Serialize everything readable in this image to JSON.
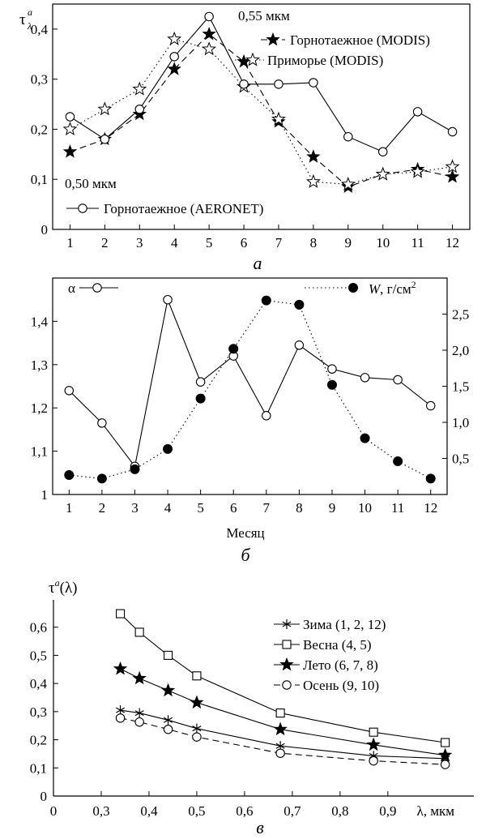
{
  "chart_data": [
    {
      "type": "line",
      "panel_label": "а",
      "ylabel": "τ^a_λ",
      "ylabel_base": "τ",
      "ylabel_sup": "a",
      "ylabel_sub": "λ",
      "xlim": [
        0.5,
        12.5
      ],
      "ylim": [
        0,
        0.45
      ],
      "x_ticks": [
        "1",
        "2",
        "3",
        "4",
        "5",
        "6",
        "7",
        "8",
        "9",
        "10",
        "11",
        "12"
      ],
      "y_ticks": [
        {
          "value": 0,
          "label": "0"
        },
        {
          "value": 0.1,
          "label": "0,1"
        },
        {
          "value": 0.2,
          "label": "0,2"
        },
        {
          "value": 0.3,
          "label": "0,3"
        },
        {
          "value": 0.4,
          "label": "0,4"
        }
      ],
      "x": [
        1,
        2,
        3,
        4,
        5,
        6,
        7,
        8,
        9,
        10,
        11,
        12
      ],
      "annotations": [
        "0,55 мкм",
        "0,50 мкм"
      ],
      "series": [
        {
          "name": "Горнотаежное (MODIS)",
          "marker": "star-filled",
          "dash": "dashed",
          "values": [
            0.155,
            0.18,
            0.23,
            0.32,
            0.39,
            0.335,
            0.215,
            0.145,
            0.085,
            0.11,
            0.12,
            0.105
          ]
        },
        {
          "name": "Приморье (MODIS)",
          "marker": "star-open",
          "dash": "dotted",
          "values": [
            0.2,
            0.24,
            0.28,
            0.38,
            0.36,
            0.285,
            0.22,
            0.095,
            0.09,
            0.11,
            0.115,
            0.125
          ]
        },
        {
          "name": "Горнотаежное (AERONET)",
          "marker": "circle-open",
          "dash": "solid",
          "values": [
            0.225,
            0.18,
            0.24,
            0.345,
            0.425,
            0.29,
            0.29,
            0.293,
            0.185,
            0.155,
            0.235,
            0.195
          ]
        }
      ]
    },
    {
      "type": "line",
      "panel_label": "б",
      "xlabel": "Месяц",
      "xlim": [
        0.5,
        12.5
      ],
      "ylim_left": [
        1.0,
        1.5
      ],
      "ylim_right": [
        0.0,
        3.0
      ],
      "x_ticks": [
        "1",
        "2",
        "3",
        "4",
        "5",
        "6",
        "7",
        "8",
        "9",
        "10",
        "11",
        "12"
      ],
      "y_ticks_left": [
        {
          "value": 1.0,
          "label": "1"
        },
        {
          "value": 1.1,
          "label": "1,1"
        },
        {
          "value": 1.2,
          "label": "1,2"
        },
        {
          "value": 1.3,
          "label": "1,3"
        },
        {
          "value": 1.4,
          "label": "1,4"
        }
      ],
      "y_ticks_right": [
        {
          "value": 0.5,
          "label": "0,5"
        },
        {
          "value": 1.0,
          "label": "1,0"
        },
        {
          "value": 1.5,
          "label": "1,5"
        },
        {
          "value": 2.0,
          "label": "2,0"
        },
        {
          "value": 2.5,
          "label": "2,5"
        }
      ],
      "x": [
        1,
        2,
        3,
        4,
        5,
        6,
        7,
        8,
        9,
        10,
        11,
        12
      ],
      "series": [
        {
          "name": "α",
          "marker": "circle-open",
          "dash": "solid",
          "axis": "left",
          "values": [
            1.24,
            1.165,
            1.065,
            1.45,
            1.26,
            1.32,
            1.182,
            1.345,
            1.29,
            1.27,
            1.265,
            1.205
          ]
        },
        {
          "name": "W, г/см²",
          "name_base": "W",
          "name_suffix": ", г/см",
          "name_sup": "2",
          "marker": "circle-filled",
          "dash": "dotted",
          "axis": "right",
          "values": [
            0.27,
            0.22,
            0.35,
            0.63,
            1.33,
            2.02,
            2.69,
            2.63,
            1.52,
            0.78,
            0.46,
            0.22
          ]
        }
      ]
    },
    {
      "type": "line",
      "panel_label": "в",
      "ylabel": "τ^a(λ)",
      "ylabel_base": "τ",
      "ylabel_sup": "a",
      "ylabel_tail": "(λ)",
      "xlim": [
        0.2,
        1.08
      ],
      "ylim": [
        0,
        0.7
      ],
      "x_ticks": [
        {
          "value": 0.2,
          "label": "0"
        },
        {
          "value": 0.3,
          "label": "0,3"
        },
        {
          "value": 0.4,
          "label": "0,4"
        },
        {
          "value": 0.5,
          "label": "0,5"
        },
        {
          "value": 0.6,
          "label": "0,6"
        },
        {
          "value": 0.7,
          "label": "0,7"
        },
        {
          "value": 0.8,
          "label": "0,8"
        },
        {
          "value": 0.9,
          "label": "0,9"
        },
        {
          "value": 1.0,
          "label": "λ, мкм"
        }
      ],
      "y_ticks": [
        {
          "value": 0,
          "label": "0"
        },
        {
          "value": 0.1,
          "label": "0,1"
        },
        {
          "value": 0.2,
          "label": "0,2"
        },
        {
          "value": 0.3,
          "label": "0,3"
        },
        {
          "value": 0.4,
          "label": "0,4"
        },
        {
          "value": 0.5,
          "label": "0,5"
        },
        {
          "value": 0.6,
          "label": "0,6"
        }
      ],
      "x": [
        0.34,
        0.38,
        0.44,
        0.5,
        0.675,
        0.87,
        1.02
      ],
      "series": [
        {
          "name": "Зима (1, 2, 12)",
          "marker": "asterisk",
          "dash": "solid",
          "values": [
            0.305,
            0.295,
            0.27,
            0.24,
            0.178,
            0.143,
            0.133
          ]
        },
        {
          "name": "Весна (4, 5)",
          "marker": "square-open",
          "dash": "solid",
          "values": [
            0.648,
            0.582,
            0.5,
            0.427,
            0.295,
            0.227,
            0.19
          ]
        },
        {
          "name": "Лето (6, 7, 8)",
          "marker": "star-filled",
          "dash": "solid",
          "values": [
            0.452,
            0.418,
            0.375,
            0.332,
            0.237,
            0.182,
            0.145
          ]
        },
        {
          "name": "Осень (9, 10)",
          "marker": "circle-open",
          "dash": "dashed",
          "values": [
            0.277,
            0.263,
            0.237,
            0.21,
            0.152,
            0.125,
            0.112
          ]
        }
      ]
    }
  ]
}
